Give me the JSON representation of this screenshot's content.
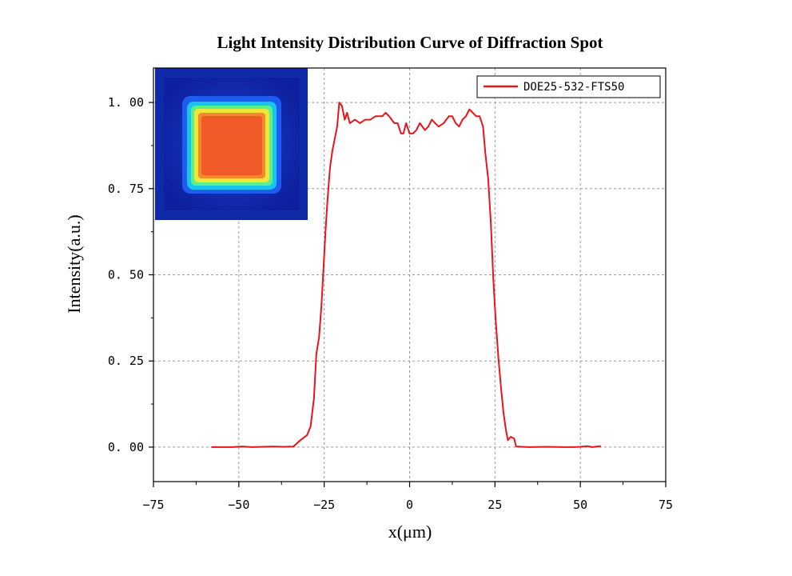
{
  "chart_data": {
    "type": "line",
    "title": "Light Intensity Distribution Curve of Diffraction Spot",
    "xlabel": "x(μm)",
    "ylabel": "Intensity(a.u.)",
    "xlim": [
      -75,
      75
    ],
    "ylim": [
      -0.1,
      1.1
    ],
    "xticks": [
      -75,
      -50,
      -25,
      0,
      25,
      50,
      75
    ],
    "xtick_labels": [
      "−75",
      "−50",
      "−25",
      "0",
      "25",
      "50",
      "75"
    ],
    "yticks": [
      0,
      0.25,
      0.5,
      0.75,
      1.0
    ],
    "ytick_labels": [
      "0. 00",
      "0. 25",
      "0. 50",
      "0. 75",
      "1. 00"
    ],
    "grid": true,
    "legend_position": "top-right",
    "inset": "false-color image of the square diffraction spot (top-left)",
    "series": [
      {
        "name": "DOE25-532-FTS50",
        "color": "#e8141b",
        "points": [
          [
            -58,
            0.0
          ],
          [
            -55,
            0.0
          ],
          [
            -52,
            0.0
          ],
          [
            -49,
            0.002
          ],
          [
            -46,
            0.0
          ],
          [
            -43,
            0.001
          ],
          [
            -40,
            0.002
          ],
          [
            -37,
            0.001
          ],
          [
            -34,
            0.002
          ],
          [
            -32,
            0.02
          ],
          [
            -30,
            0.035
          ],
          [
            -29,
            0.06
          ],
          [
            -28,
            0.14
          ],
          [
            -27.3,
            0.27
          ],
          [
            -26.5,
            0.32
          ],
          [
            -25.8,
            0.41
          ],
          [
            -25.2,
            0.52
          ],
          [
            -24.6,
            0.63
          ],
          [
            -24,
            0.72
          ],
          [
            -23.3,
            0.81
          ],
          [
            -22.6,
            0.86
          ],
          [
            -21.8,
            0.9
          ],
          [
            -21.2,
            0.93
          ],
          [
            -20.6,
            1.0
          ],
          [
            -19.8,
            0.99
          ],
          [
            -19.0,
            0.95
          ],
          [
            -18.3,
            0.97
          ],
          [
            -17.5,
            0.94
          ],
          [
            -16.0,
            0.95
          ],
          [
            -14.5,
            0.94
          ],
          [
            -13.0,
            0.95
          ],
          [
            -11.5,
            0.95
          ],
          [
            -10.0,
            0.96
          ],
          [
            -8.0,
            0.96
          ],
          [
            -7.0,
            0.97
          ],
          [
            -6.0,
            0.96
          ],
          [
            -4.5,
            0.94
          ],
          [
            -3.5,
            0.94
          ],
          [
            -2.5,
            0.91
          ],
          [
            -1.8,
            0.91
          ],
          [
            -1.0,
            0.94
          ],
          [
            0.0,
            0.91
          ],
          [
            1.0,
            0.91
          ],
          [
            2.0,
            0.92
          ],
          [
            3.0,
            0.94
          ],
          [
            4.5,
            0.92
          ],
          [
            5.5,
            0.93
          ],
          [
            6.5,
            0.95
          ],
          [
            7.5,
            0.94
          ],
          [
            8.5,
            0.93
          ],
          [
            10.0,
            0.94
          ],
          [
            11.5,
            0.96
          ],
          [
            12.5,
            0.96
          ],
          [
            13.5,
            0.94
          ],
          [
            14.5,
            0.93
          ],
          [
            15.5,
            0.95
          ],
          [
            16.5,
            0.96
          ],
          [
            17.5,
            0.98
          ],
          [
            18.5,
            0.97
          ],
          [
            19.5,
            0.96
          ],
          [
            20.5,
            0.96
          ],
          [
            21.5,
            0.93
          ],
          [
            22.2,
            0.85
          ],
          [
            23.0,
            0.78
          ],
          [
            23.8,
            0.65
          ],
          [
            24.5,
            0.49
          ],
          [
            25.2,
            0.37
          ],
          [
            26.0,
            0.26
          ],
          [
            26.8,
            0.17
          ],
          [
            27.5,
            0.1
          ],
          [
            28.2,
            0.05
          ],
          [
            28.8,
            0.02
          ],
          [
            29.6,
            0.03
          ],
          [
            30.6,
            0.025
          ],
          [
            31.2,
            0.002
          ],
          [
            35,
            0.0
          ],
          [
            40,
            0.001
          ],
          [
            45,
            0.0
          ],
          [
            48,
            0.0
          ],
          [
            50,
            0.001
          ],
          [
            52,
            0.003
          ],
          [
            53.5,
            0.0
          ],
          [
            55,
            0.002
          ],
          [
            56,
            0.003
          ]
        ]
      }
    ]
  }
}
